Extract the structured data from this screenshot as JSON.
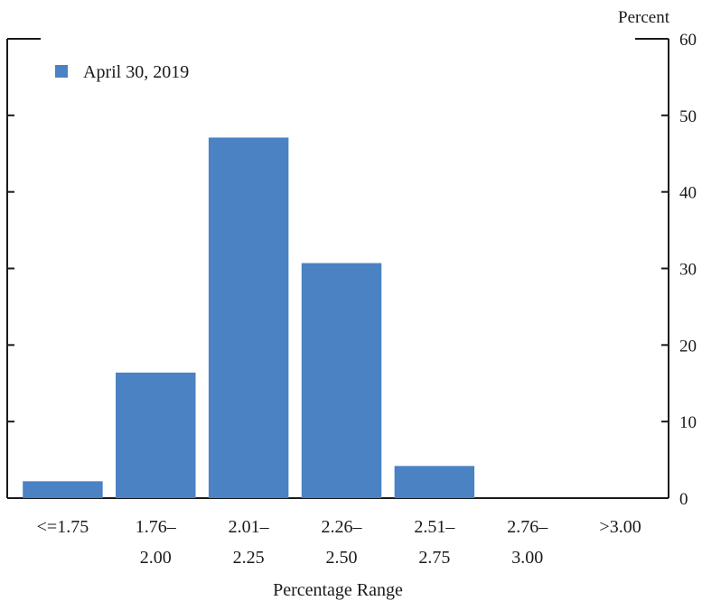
{
  "chart_data": {
    "type": "bar",
    "categories": [
      [
        "<=1.75"
      ],
      [
        "1.76–",
        "2.00"
      ],
      [
        "2.01–",
        "2.25"
      ],
      [
        "2.26–",
        "2.50"
      ],
      [
        "2.51–",
        "2.75"
      ],
      [
        "2.76–",
        "3.00"
      ],
      [
        ">3.00"
      ]
    ],
    "series": [
      {
        "name": "April 30, 2019",
        "values": [
          2.2,
          16.4,
          47.1,
          30.7,
          4.2,
          0,
          0
        ]
      }
    ],
    "ylim": [
      0,
      60
    ],
    "yticks": [
      0,
      10,
      20,
      30,
      40,
      50,
      60
    ],
    "y_unit_label": "Percent",
    "xlabel": "Percentage Range",
    "legend_position": "top-left",
    "bar_color": "#4a82c3"
  }
}
